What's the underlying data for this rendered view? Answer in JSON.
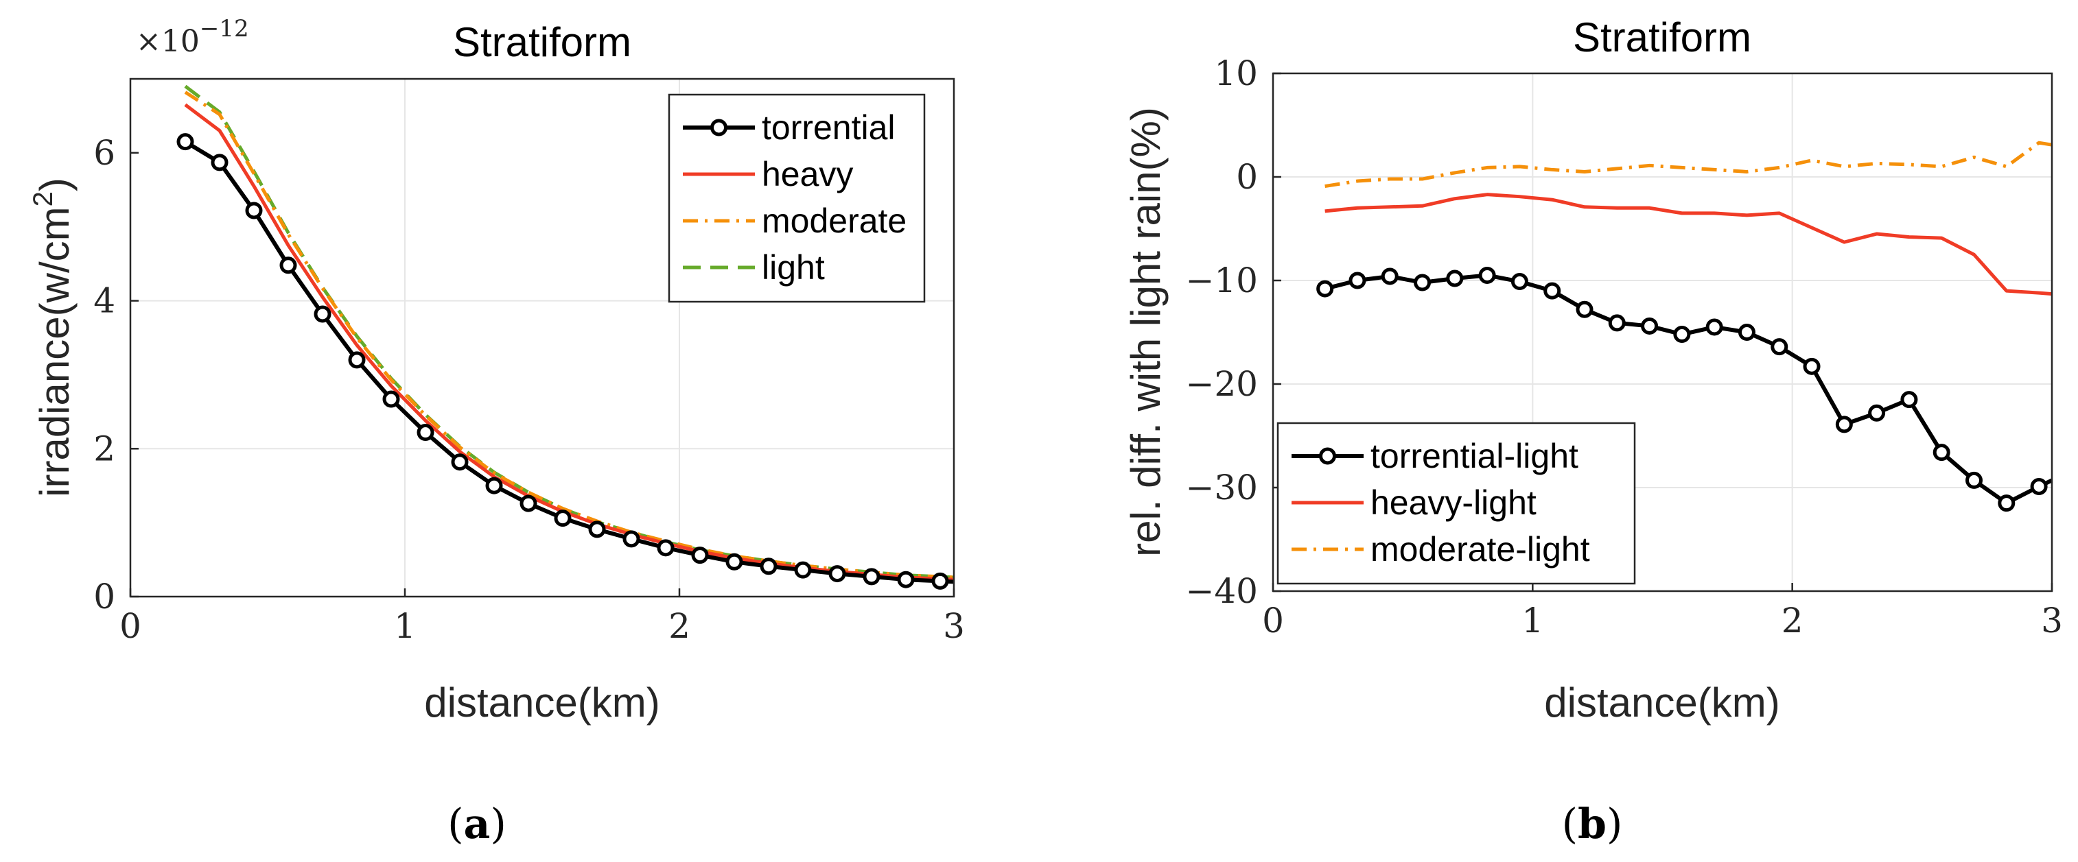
{
  "chart_data": [
    {
      "type": "line",
      "title": "Stratiform",
      "xlabel": "distance(km)",
      "ylabel": "irradiance(w/cm²)",
      "ylabel_main": "irradiance(w/cm",
      "ylabel_sup": "2",
      "ylabel_close": ")",
      "exponent_base": "×10",
      "exponent_power": "−12",
      "caption_open": "(",
      "caption_letter": "a",
      "caption_close": ")",
      "xlim": [
        0,
        3
      ],
      "ylim": [
        0,
        7
      ],
      "xticks": [
        0,
        1,
        2,
        3
      ],
      "yticks": [
        0,
        2,
        4,
        6
      ],
      "grid": true,
      "legend_position": "top-right",
      "x": [
        0.2,
        0.325,
        0.45,
        0.575,
        0.7,
        0.825,
        0.95,
        1.075,
        1.2,
        1.325,
        1.45,
        1.575,
        1.7,
        1.825,
        1.95,
        2.075,
        2.2,
        2.325,
        2.45,
        2.575,
        2.7,
        2.825,
        2.95,
        3.0
      ],
      "series": [
        {
          "name": "torrential",
          "color": "#000000",
          "style": "solid-circle",
          "values": [
            6.15,
            5.87,
            5.22,
            4.48,
            3.82,
            3.2,
            2.67,
            2.22,
            1.82,
            1.5,
            1.26,
            1.06,
            0.91,
            0.78,
            0.66,
            0.56,
            0.47,
            0.41,
            0.36,
            0.31,
            0.27,
            0.23,
            0.21,
            0.2
          ]
        },
        {
          "name": "heavy",
          "color": "#f03c26",
          "style": "solid",
          "values": [
            6.65,
            6.3,
            5.55,
            4.75,
            4.05,
            3.4,
            2.85,
            2.38,
            1.96,
            1.62,
            1.36,
            1.15,
            0.98,
            0.84,
            0.72,
            0.61,
            0.52,
            0.45,
            0.39,
            0.34,
            0.3,
            0.26,
            0.24,
            0.23
          ]
        },
        {
          "name": "moderate",
          "color": "#f5900a",
          "style": "dashdot",
          "values": [
            6.82,
            6.52,
            5.72,
            4.9,
            4.17,
            3.5,
            2.93,
            2.45,
            2.02,
            1.67,
            1.41,
            1.19,
            1.02,
            0.87,
            0.75,
            0.64,
            0.55,
            0.48,
            0.42,
            0.37,
            0.33,
            0.29,
            0.27,
            0.26
          ]
        },
        {
          "name": "light",
          "color": "#66aa2a",
          "style": "dashed",
          "values": [
            6.9,
            6.55,
            5.75,
            4.92,
            4.18,
            3.52,
            2.95,
            2.46,
            2.03,
            1.68,
            1.41,
            1.19,
            1.01,
            0.87,
            0.74,
            0.63,
            0.55,
            0.48,
            0.42,
            0.37,
            0.33,
            0.29,
            0.27,
            0.26
          ]
        }
      ]
    },
    {
      "type": "line",
      "title": "Stratiform",
      "xlabel": "distance(km)",
      "ylabel": "rel. diff. with light rain(%)",
      "caption_open": "(",
      "caption_letter": "b",
      "caption_close": ")",
      "xlim": [
        0,
        3
      ],
      "ylim": [
        -40,
        10
      ],
      "xticks": [
        0,
        1,
        2,
        3
      ],
      "yticks": [
        -40,
        -30,
        -20,
        -10,
        0,
        10
      ],
      "ytick_labels": [
        "−40",
        "−30",
        "−20",
        "−10",
        "0",
        "10"
      ],
      "grid": true,
      "legend_position": "bottom-left",
      "x": [
        0.2,
        0.325,
        0.45,
        0.575,
        0.7,
        0.825,
        0.95,
        1.075,
        1.2,
        1.325,
        1.45,
        1.575,
        1.7,
        1.825,
        1.95,
        2.075,
        2.2,
        2.325,
        2.45,
        2.575,
        2.7,
        2.825,
        2.95,
        3.0
      ],
      "series": [
        {
          "name": "torrential-light",
          "color": "#000000",
          "style": "solid-circle",
          "values": [
            -10.8,
            -10.0,
            -9.6,
            -10.2,
            -9.8,
            -9.5,
            -10.1,
            -11.0,
            -12.8,
            -14.1,
            -14.4,
            -15.2,
            -14.5,
            -15.0,
            -16.4,
            -18.3,
            -23.9,
            -22.8,
            -21.5,
            -26.6,
            -29.3,
            -31.5,
            -29.9,
            -29.3
          ]
        },
        {
          "name": "heavy-light",
          "color": "#f03c26",
          "style": "solid",
          "values": [
            -3.3,
            -3.0,
            -2.9,
            -2.8,
            -2.1,
            -1.7,
            -1.9,
            -2.2,
            -2.9,
            -3.0,
            -3.0,
            -3.5,
            -3.5,
            -3.7,
            -3.5,
            -4.9,
            -6.3,
            -5.5,
            -5.8,
            -5.9,
            -7.5,
            -11.0,
            -11.2,
            -11.3
          ]
        },
        {
          "name": "moderate-light",
          "color": "#f5900a",
          "style": "dashdot",
          "values": [
            -0.9,
            -0.4,
            -0.2,
            -0.2,
            0.4,
            0.9,
            1.0,
            0.7,
            0.5,
            0.8,
            1.1,
            0.9,
            0.7,
            0.5,
            0.9,
            1.6,
            1.0,
            1.3,
            1.2,
            1.0,
            1.9,
            1.0,
            3.3,
            3.1
          ]
        }
      ]
    }
  ]
}
